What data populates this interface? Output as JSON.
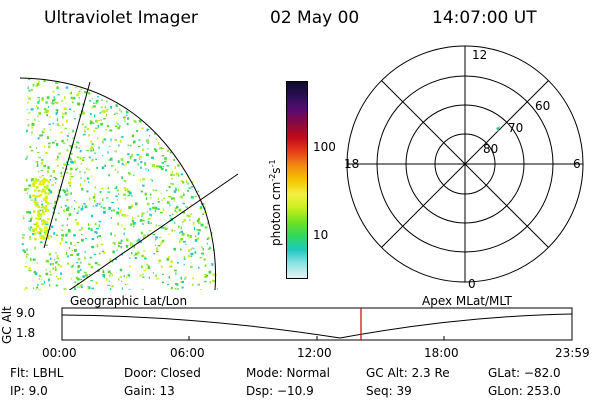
{
  "header": {
    "instrument": "Ultraviolet Imager",
    "date": "02 May 00",
    "time": "14:07:00 UT"
  },
  "colorbar": {
    "unit_main": "photon cm",
    "unit_sup1": "-2",
    "unit_s": "s",
    "unit_sup2": "-1",
    "tick_100": "100",
    "tick_10": "10",
    "colors": [
      "#0b0b2e",
      "#2a0f55",
      "#5a0a70",
      "#8a0a40",
      "#c40a1a",
      "#e8401a",
      "#f28c10",
      "#f5c400",
      "#f5f040",
      "#c8f020",
      "#70e020",
      "#30d860",
      "#20c8c0",
      "#90e4e4",
      "#e4f4f4"
    ]
  },
  "polar": {
    "label_12": "12",
    "label_18": "18",
    "label_6": "6",
    "label_0": "0",
    "ring_60": "60",
    "ring_70": "70",
    "ring_80": "80"
  },
  "timeline": {
    "left_label": "Geographic Lat/Lon",
    "right_label": "Apex MLat/MLT",
    "y_axis": "GC Alt",
    "y_top": "9.0",
    "y_bottom": "1.8",
    "ticks": [
      "00:00",
      "06:00",
      "12:00",
      "18:00",
      "23:59"
    ],
    "marker_color": "#d00000"
  },
  "info": {
    "flt": "Flt: LBHL",
    "ip": "IP:  9.0",
    "door": "Door: Closed",
    "gain": "Gain: 13",
    "mode": "Mode: Normal",
    "dsp": "Dsp:  −10.9",
    "gcalt": "GC Alt: 2.3 Re",
    "seq": "Seq: 39",
    "glat": "GLat: −82.0",
    "glon": "GLon: 253.0"
  }
}
